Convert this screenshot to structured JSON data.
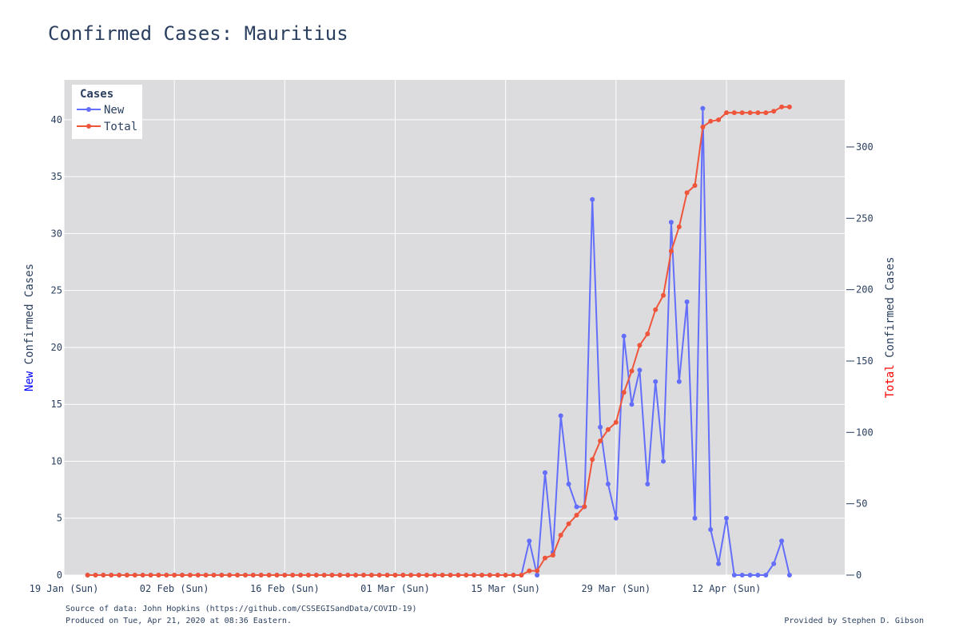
{
  "chart_data": {
    "type": "line",
    "title": "Confirmed Cases: Mauritius",
    "xlabel": "",
    "ylabel_left": {
      "prefix": "New",
      "rest": " Confirmed Cases",
      "prefix_color": "#0000ff"
    },
    "ylabel_right": {
      "prefix": "Total",
      "rest": " Confirmed Cases",
      "prefix_color": "#ff0000"
    },
    "x_ticks": [
      "19 Jan (Sun)",
      "02 Feb (Sun)",
      "16 Feb (Sun)",
      "01 Mar (Sun)",
      "15 Mar (Sun)",
      "29 Mar (Sun)",
      "12 Apr (Sun)"
    ],
    "x_range": [
      "2020-01-19",
      "2020-04-27"
    ],
    "ylim_left": [
      0,
      43.5
    ],
    "yticks_left": [
      0,
      5,
      10,
      15,
      20,
      25,
      30,
      35,
      40
    ],
    "ylim_right": [
      0,
      347
    ],
    "yticks_right": [
      0,
      50,
      100,
      150,
      200,
      250,
      300
    ],
    "grid": true,
    "legend": {
      "title": "Cases",
      "position": "top-left"
    },
    "x_start": "2020-01-22",
    "series": [
      {
        "name": "New",
        "color": "#636efa",
        "axis": "left",
        "values": [
          0,
          0,
          0,
          0,
          0,
          0,
          0,
          0,
          0,
          0,
          0,
          0,
          0,
          0,
          0,
          0,
          0,
          0,
          0,
          0,
          0,
          0,
          0,
          0,
          0,
          0,
          0,
          0,
          0,
          0,
          0,
          0,
          0,
          0,
          0,
          0,
          0,
          0,
          0,
          0,
          0,
          0,
          0,
          0,
          0,
          0,
          0,
          0,
          0,
          0,
          0,
          0,
          0,
          0,
          0,
          0,
          3,
          0,
          9,
          2,
          14,
          8,
          6,
          6,
          33,
          13,
          8,
          5,
          21,
          15,
          18,
          8,
          17,
          10,
          31,
          17,
          24,
          5,
          41,
          4,
          1,
          5,
          0,
          0,
          0,
          0,
          0,
          1,
          3,
          0
        ]
      },
      {
        "name": "Total",
        "color": "#ef553b",
        "axis": "right",
        "values": [
          0,
          0,
          0,
          0,
          0,
          0,
          0,
          0,
          0,
          0,
          0,
          0,
          0,
          0,
          0,
          0,
          0,
          0,
          0,
          0,
          0,
          0,
          0,
          0,
          0,
          0,
          0,
          0,
          0,
          0,
          0,
          0,
          0,
          0,
          0,
          0,
          0,
          0,
          0,
          0,
          0,
          0,
          0,
          0,
          0,
          0,
          0,
          0,
          0,
          0,
          0,
          0,
          0,
          0,
          0,
          0,
          3,
          3,
          12,
          14,
          28,
          36,
          42,
          48,
          81,
          94,
          102,
          107,
          128,
          143,
          161,
          169,
          186,
          196,
          227,
          244,
          268,
          273,
          314,
          318,
          319,
          324,
          324,
          324,
          324,
          324,
          324,
          325,
          328,
          328
        ]
      }
    ]
  },
  "footer": {
    "source": "Source of data: John Hopkins (https://github.com/CSSEGISandData/COVID-19)",
    "produced": "Produced on Tue, Apr 21, 2020 at 08:36 Eastern.",
    "provided": "Provided by Stephen D. Gibson"
  }
}
